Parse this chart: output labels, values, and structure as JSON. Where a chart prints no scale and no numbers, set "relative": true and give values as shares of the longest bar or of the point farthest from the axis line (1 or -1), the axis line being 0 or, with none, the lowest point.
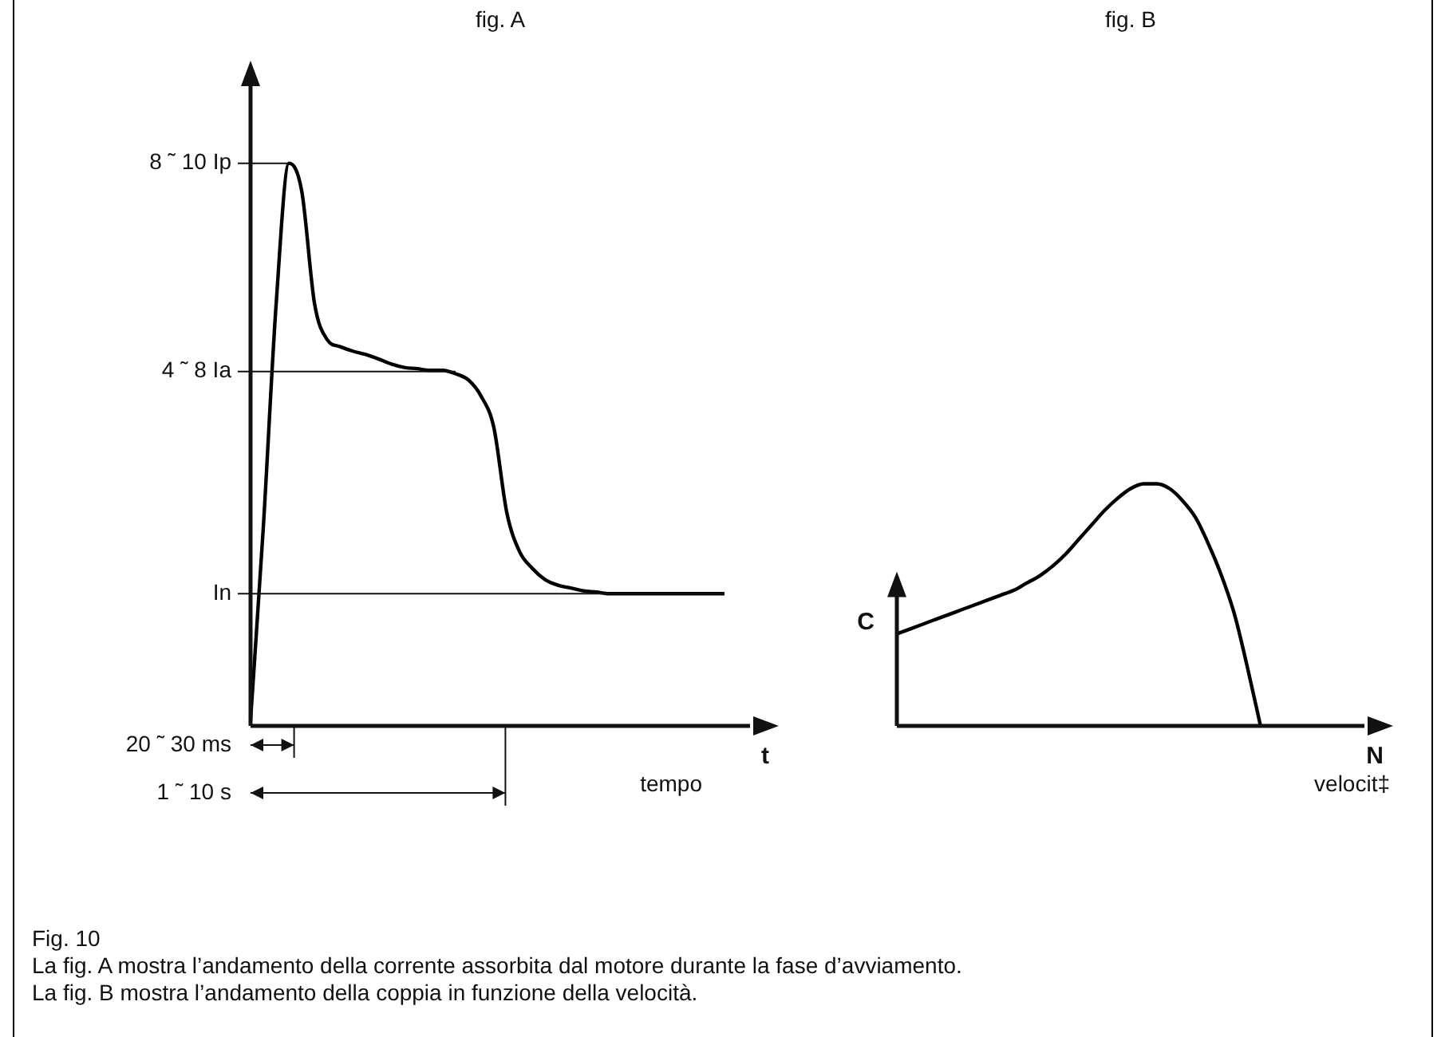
{
  "chart_data": [
    {
      "type": "line",
      "title": "fig. A",
      "xlabel": "t",
      "relative": true,
      "categories": [
        null,
        null,
        null,
        null,
        null,
        null,
        null,
        null,
        null,
        null,
        null,
        null,
        null,
        null,
        null,
        null,
        null,
        null,
        null,
        null,
        null,
        null,
        null,
        null,
        null,
        null,
        null,
        null,
        null,
        null,
        null,
        null,
        null,
        null,
        null,
        null,
        null,
        null,
        null,
        null
      ],
      "series": [
        {
          "color": "#000000",
          "values": [
            0.01,
            0.354,
            0.75,
            1,
            0.95,
            0.75,
            0.686,
            0.674,
            0.666,
            0.66,
            0.652,
            0.643,
            0.637,
            0.635,
            0.632,
            0.632,
            0.626,
            0.615,
            0.586,
            0.53,
            0.38,
            0.31,
            0.28,
            0.26,
            0.25,
            0.245,
            0.24,
            0.238,
            0.235,
            0.235,
            0.235,
            0.235,
            0.235,
            0.235,
            0.235,
            0.235,
            0.235,
            0.235,
            null,
            null
          ]
        }
      ],
      "ref_lines": [
        {
          "axis": "y",
          "value": 1,
          "label": "8 ˜ 10 Ip"
        },
        {
          "axis": "y",
          "value": 0.63,
          "label": "4 ˜ 8 Ia"
        },
        {
          "axis": "y",
          "value": 0.235,
          "label": "In"
        }
      ],
      "annotations": [
        "20 ˜ 30 ms",
        "1 ˜ 10 s",
        "tempo",
        "Fig. 10",
        "La fig. A mostra l’andamento della corrente assorbita dal motore durante la fase d’avviamento.",
        "La fig. B mostra l’andamento della coppia in  funzione della velocità."
      ]
    },
    {
      "type": "line",
      "title": "fig. B",
      "xlabel": "N",
      "ylabel": "C",
      "relative": true,
      "categories": [
        null,
        null,
        null,
        null,
        null,
        null,
        null,
        null,
        null,
        null,
        null,
        null,
        null,
        null,
        null,
        null,
        null,
        null,
        null,
        null,
        null,
        null,
        null,
        null,
        null,
        null,
        null,
        null,
        null,
        null,
        null,
        null,
        null,
        null,
        null,
        null,
        null
      ],
      "series": [
        {
          "color": "#000000",
          "values": [
            0.38,
            0.4,
            0.42,
            0.44,
            0.46,
            0.48,
            0.5,
            0.52,
            0.54,
            0.56,
            0.59,
            0.62,
            0.66,
            0.71,
            0.77,
            0.83,
            0.89,
            0.94,
            0.98,
            1.0,
            1.0,
            0.98,
            0.93,
            0.86,
            0.75,
            0.62,
            0.46,
            0.24,
            0,
            null,
            null,
            null,
            null,
            null,
            null,
            null,
            null
          ]
        }
      ],
      "annotations": [
        "velocit‡"
      ]
    }
  ]
}
